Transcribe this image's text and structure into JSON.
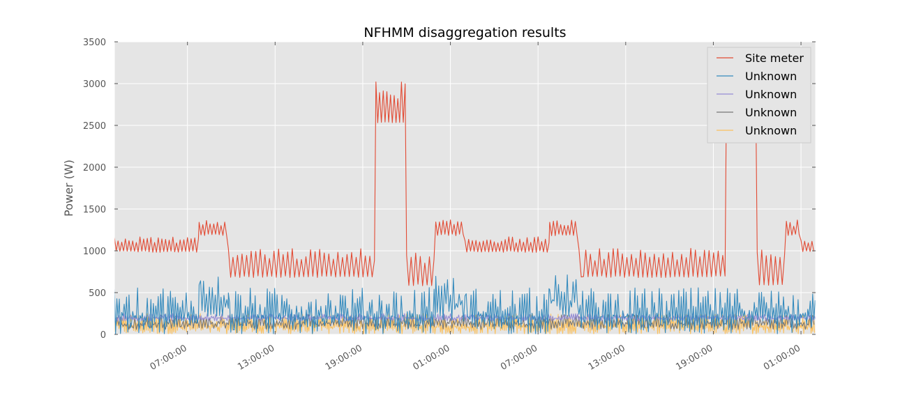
{
  "chart_data": {
    "type": "line",
    "title": "NFHMM disaggregation results",
    "xlabel": "",
    "ylabel": "Power (W)",
    "ylim": [
      0,
      3500
    ],
    "yticks": [
      0,
      500,
      1000,
      1500,
      2000,
      2500,
      3000,
      3500
    ],
    "xlim_hours": [
      0,
      48
    ],
    "xticks": [
      {
        "hours": 5,
        "label": "07:00:00"
      },
      {
        "hours": 11,
        "label": "13:00:00"
      },
      {
        "hours": 17,
        "label": "19:00:00"
      },
      {
        "hours": 23,
        "label": "01:00:00"
      },
      {
        "hours": 29,
        "label": "07:00:00"
      },
      {
        "hours": 35,
        "label": "13:00:00"
      },
      {
        "hours": 41,
        "label": "19:00:00"
      },
      {
        "hours": 47,
        "label": "01:00:00"
      }
    ],
    "grid": true,
    "legend_position": "top-right",
    "background_color": "#e5e5e5",
    "series": [
      {
        "name": "Site meter",
        "color": "#e24a33",
        "segments": [
          {
            "from": 0,
            "to": 5.8,
            "base": 1000,
            "amp": 170,
            "freq": 4
          },
          {
            "from": 5.8,
            "to": 7.8,
            "base": 1200,
            "amp": 170,
            "freq": 4
          },
          {
            "from": 7.8,
            "to": 17.9,
            "base": 700,
            "amp": 330,
            "freq": 3.2
          },
          {
            "from": 17.9,
            "to": 20.0,
            "base": 2550,
            "amp": 480,
            "freq": 4
          },
          {
            "from": 20.0,
            "to": 22.0,
            "base": 600,
            "amp": 430,
            "freq": 3.2
          },
          {
            "from": 22.0,
            "to": 24.0,
            "base": 1200,
            "amp": 170,
            "freq": 4
          },
          {
            "from": 24.0,
            "to": 29.8,
            "base": 1000,
            "amp": 170,
            "freq": 4
          },
          {
            "from": 29.8,
            "to": 31.8,
            "base": 1200,
            "amp": 170,
            "freq": 4
          },
          {
            "from": 31.8,
            "to": 41.9,
            "base": 700,
            "amp": 330,
            "freq": 3.2
          },
          {
            "from": 41.9,
            "to": 44.0,
            "base": 2550,
            "amp": 480,
            "freq": 4
          },
          {
            "from": 44.0,
            "to": 46.0,
            "base": 600,
            "amp": 430,
            "freq": 3.2
          },
          {
            "from": 46.0,
            "to": 47.0,
            "base": 1200,
            "amp": 170,
            "freq": 4
          },
          {
            "from": 47.0,
            "to": 48.0,
            "base": 1000,
            "amp": 170,
            "freq": 4
          }
        ]
      },
      {
        "name": "Unknown",
        "color": "#348abd",
        "segments": [
          {
            "from": 0,
            "to": 5.8,
            "base": 0,
            "amp": 560,
            "freq": 6
          },
          {
            "from": 5.8,
            "to": 7.8,
            "base": 200,
            "amp": 520,
            "freq": 5
          },
          {
            "from": 7.8,
            "to": 22.0,
            "base": 0,
            "amp": 560,
            "freq": 6
          },
          {
            "from": 22.0,
            "to": 24.0,
            "base": 150,
            "amp": 570,
            "freq": 5
          },
          {
            "from": 24.0,
            "to": 29.8,
            "base": 0,
            "amp": 560,
            "freq": 6
          },
          {
            "from": 29.8,
            "to": 31.8,
            "base": 200,
            "amp": 520,
            "freq": 5
          },
          {
            "from": 31.8,
            "to": 48.0,
            "base": 0,
            "amp": 560,
            "freq": 6
          }
        ]
      },
      {
        "name": "Unknown",
        "color": "#988ed5",
        "segments": [
          {
            "from": 0,
            "to": 48.0,
            "base": 160,
            "amp": 90,
            "freq": 7
          }
        ]
      },
      {
        "name": "Unknown",
        "color": "#777777",
        "segments": [
          {
            "from": 0,
            "to": 48.0,
            "base": 60,
            "amp": 180,
            "freq": 5
          }
        ]
      },
      {
        "name": "Unknown",
        "color": "#fbc15e",
        "segments": [
          {
            "from": 0,
            "to": 48.0,
            "base": 0,
            "amp": 250,
            "freq": 8
          }
        ]
      }
    ]
  }
}
